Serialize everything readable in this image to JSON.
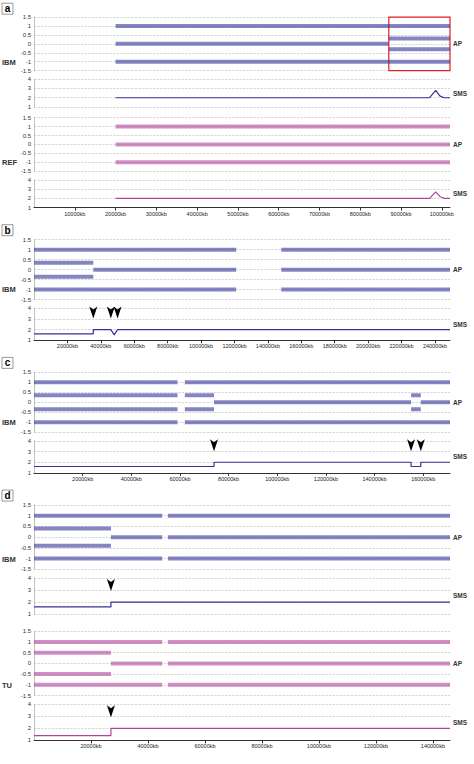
{
  "chart_data": [
    {
      "type": "line",
      "title": "a",
      "grid": true,
      "xlim": [
        0,
        102000
      ],
      "xticks": [
        {
          "value": 10000,
          "label": "10000kb"
        },
        {
          "value": 20000,
          "label": "20000kb"
        },
        {
          "value": 30000,
          "label": "30000kb"
        },
        {
          "value": 40000,
          "label": "40000kb"
        },
        {
          "value": 50000,
          "label": "50000kb"
        },
        {
          "value": 60000,
          "label": "60000kb"
        },
        {
          "value": 70000,
          "label": "70000kb"
        },
        {
          "value": 80000,
          "label": "80000kb"
        },
        {
          "value": 90000,
          "label": "90000kb"
        },
        {
          "value": 100000,
          "label": "100000kb"
        }
      ],
      "tracks": [
        {
          "label": "IBM",
          "color": "#33339a",
          "ap": {
            "name": "AP",
            "ylim": [
              -1.5,
              1.5
            ],
            "yticks": [
              -1.5,
              -1,
              -0.5,
              0,
              0.5,
              1,
              1.5
            ],
            "highlight": [
              87000,
              102000
            ],
            "bands": [
              {
                "x": [
                  20000,
                  102000
                ],
                "values": [
                  1,
                  1
                ]
              },
              {
                "x": [
                  20000,
                  87000
                ],
                "values": [
                  0,
                  0
                ]
              },
              {
                "x": [
                  87000,
                  102000
                ],
                "values": [
                  0.3,
                  0.3
                ]
              },
              {
                "x": [
                  87000,
                  102000
                ],
                "values": [
                  -0.3,
                  -0.3
                ]
              },
              {
                "x": [
                  20000,
                  102000
                ],
                "values": [
                  -1,
                  -1
                ]
              }
            ]
          },
          "sms": {
            "name": "SMS",
            "ylim": [
              1,
              4
            ],
            "yticks": [
              1,
              2,
              3,
              4
            ],
            "x": [
              20000,
              60000,
              97000,
              98500,
              99500,
              100500,
              102000
            ],
            "values": [
              2,
              2,
              2,
              2.8,
              2.2,
              2,
              2
            ],
            "arrows": []
          }
        },
        {
          "label": "REF",
          "color": "#b0449c",
          "ap": {
            "name": "AP",
            "ylim": [
              -1.5,
              1.5
            ],
            "yticks": [
              -1.5,
              -1,
              -0.5,
              0,
              0.5,
              1,
              1.5
            ],
            "bands": [
              {
                "x": [
                  20000,
                  102000
                ],
                "values": [
                  1,
                  1
                ]
              },
              {
                "x": [
                  20000,
                  102000
                ],
                "values": [
                  0,
                  0
                ]
              },
              {
                "x": [
                  20000,
                  102000
                ],
                "values": [
                  -1,
                  -1
                ]
              }
            ]
          },
          "sms": {
            "name": "SMS",
            "ylim": [
              1,
              4
            ],
            "yticks": [
              1,
              2,
              3,
              4
            ],
            "x": [
              20000,
              60000,
              97000,
              98500,
              99500,
              100500,
              102000
            ],
            "values": [
              2,
              2,
              2,
              2.7,
              2.2,
              2,
              2
            ],
            "arrows": []
          }
        }
      ]
    },
    {
      "type": "line",
      "title": "b",
      "grid": true,
      "xlim": [
        0,
        249000
      ],
      "xticks": [
        {
          "value": 20000,
          "label": "20000kb"
        },
        {
          "value": 40000,
          "label": "40000kb"
        },
        {
          "value": 60000,
          "label": "60000kb"
        },
        {
          "value": 80000,
          "label": "80000kb"
        },
        {
          "value": 100000,
          "label": "100000kb"
        },
        {
          "value": 120000,
          "label": "120000kb"
        },
        {
          "value": 140000,
          "label": "140000kb"
        },
        {
          "value": 160000,
          "label": "160000kb"
        },
        {
          "value": 180000,
          "label": "180000kb"
        },
        {
          "value": 200000,
          "label": "200000kb"
        },
        {
          "value": 220000,
          "label": "220000kb"
        },
        {
          "value": 240000,
          "label": "240000kb"
        }
      ],
      "tracks": [
        {
          "label": "IBM",
          "color": "#33339a",
          "ap": {
            "name": "AP",
            "ylim": [
              -1.5,
              1.5
            ],
            "yticks": [
              -1.5,
              -1,
              -0.5,
              0,
              0.5,
              1,
              1.5
            ],
            "bands": [
              {
                "x": [
                  0,
                  121000
                ],
                "values": [
                  1,
                  1
                ]
              },
              {
                "x": [
                  148000,
                  249000
                ],
                "values": [
                  1,
                  1
                ]
              },
              {
                "x": [
                  0,
                  35500
                ],
                "values": [
                  0.35,
                  0.35
                ]
              },
              {
                "x": [
                  0,
                  35500
                ],
                "values": [
                  -0.35,
                  -0.35
                ]
              },
              {
                "x": [
                  35500,
                  121000
                ],
                "values": [
                  0,
                  0
                ]
              },
              {
                "x": [
                  148000,
                  249000
                ],
                "values": [
                  0,
                  0
                ]
              },
              {
                "x": [
                  0,
                  121000
                ],
                "values": [
                  -1,
                  -1
                ]
              },
              {
                "x": [
                  148000,
                  249000
                ],
                "values": [
                  -1,
                  -1
                ]
              }
            ]
          },
          "sms": {
            "name": "SMS",
            "ylim": [
              1,
              4
            ],
            "yticks": [
              1,
              2,
              3,
              4
            ],
            "x": [
              0,
              35500,
              35500,
              46000,
              48000,
              50000,
              249000
            ],
            "values": [
              1.6,
              1.6,
              2,
              2,
              1.5,
              2,
              2
            ],
            "arrows": [
              {
                "x": 35500,
                "y": 2
              },
              {
                "x": 46000,
                "y": 2
              },
              {
                "x": 50000,
                "y": 2
              }
            ]
          }
        }
      ]
    },
    {
      "type": "line",
      "title": "c",
      "grid": true,
      "xlim": [
        0,
        171000
      ],
      "xticks": [
        {
          "value": 20000,
          "label": "20000kb"
        },
        {
          "value": 40000,
          "label": "40000kb"
        },
        {
          "value": 60000,
          "label": "60000kb"
        },
        {
          "value": 80000,
          "label": "80000kb"
        },
        {
          "value": 100000,
          "label": "100000kb"
        },
        {
          "value": 120000,
          "label": "120000kb"
        },
        {
          "value": 140000,
          "label": "140000kb"
        },
        {
          "value": 160000,
          "label": "160000kb"
        }
      ],
      "tracks": [
        {
          "label": "IBM",
          "color": "#33339a",
          "ap": {
            "name": "AP",
            "ylim": [
              -1.5,
              1.5
            ],
            "yticks": [
              -1.5,
              -1,
              -0.5,
              0,
              0.5,
              1,
              1.5
            ],
            "bands": [
              {
                "x": [
                  0,
                  59000
                ],
                "values": [
                  1,
                  1
                ]
              },
              {
                "x": [
                  62000,
                  171000
                ],
                "values": [
                  1,
                  1
                ]
              },
              {
                "x": [
                  0,
                  59000
                ],
                "values": [
                  0.35,
                  0.35
                ]
              },
              {
                "x": [
                  0,
                  59000
                ],
                "values": [
                  -0.35,
                  -0.35
                ]
              },
              {
                "x": [
                  62000,
                  74000
                ],
                "values": [
                  0.35,
                  0.35
                ]
              },
              {
                "x": [
                  62000,
                  74000
                ],
                "values": [
                  -0.35,
                  -0.35
                ]
              },
              {
                "x": [
                  74000,
                  155000
                ],
                "values": [
                  0,
                  0
                ]
              },
              {
                "x": [
                  155000,
                  159000
                ],
                "values": [
                  0.35,
                  0.35
                ]
              },
              {
                "x": [
                  155000,
                  159000
                ],
                "values": [
                  -0.35,
                  -0.35
                ]
              },
              {
                "x": [
                  159000,
                  171000
                ],
                "values": [
                  0,
                  0
                ]
              },
              {
                "x": [
                  0,
                  59000
                ],
                "values": [
                  -1,
                  -1
                ]
              },
              {
                "x": [
                  62000,
                  171000
                ],
                "values": [
                  -1,
                  -1
                ]
              }
            ]
          },
          "sms": {
            "name": "SMS",
            "ylim": [
              1,
              4
            ],
            "yticks": [
              1,
              2,
              3,
              4
            ],
            "x": [
              0,
              74000,
              74000,
              155000,
              155000,
              159000,
              159000,
              171000
            ],
            "values": [
              1.6,
              1.6,
              2,
              2,
              1.6,
              1.6,
              2,
              2
            ],
            "arrows": [
              {
                "x": 74000,
                "y": 2
              },
              {
                "x": 155000,
                "y": 2
              },
              {
                "x": 159000,
                "y": 2
              }
            ]
          }
        }
      ]
    },
    {
      "type": "line",
      "title": "d",
      "grid": true,
      "xlim": [
        0,
        146000
      ],
      "xticks": [
        {
          "value": 20000,
          "label": "20000kb"
        },
        {
          "value": 40000,
          "label": "40000kb"
        },
        {
          "value": 60000,
          "label": "60000kb"
        },
        {
          "value": 80000,
          "label": "80000kb"
        },
        {
          "value": 100000,
          "label": "100000kb"
        },
        {
          "value": 120000,
          "label": "120000kb"
        },
        {
          "value": 140000,
          "label": "140000kb"
        }
      ],
      "tracks": [
        {
          "label": "IBM",
          "color": "#33339a",
          "ap": {
            "name": "AP",
            "ylim": [
              -1.5,
              1.5
            ],
            "yticks": [
              -1.5,
              -1,
              -0.5,
              0,
              0.5,
              1,
              1.5
            ],
            "bands": [
              {
                "x": [
                  0,
                  45000
                ],
                "values": [
                  1,
                  1
                ]
              },
              {
                "x": [
                  47000,
                  146000
                ],
                "values": [
                  1,
                  1
                ]
              },
              {
                "x": [
                  0,
                  27000
                ],
                "values": [
                  0.4,
                  0.4
                ]
              },
              {
                "x": [
                  0,
                  27000
                ],
                "values": [
                  -0.4,
                  -0.4
                ]
              },
              {
                "x": [
                  27000,
                  45000
                ],
                "values": [
                  0,
                  0
                ]
              },
              {
                "x": [
                  47000,
                  146000
                ],
                "values": [
                  0,
                  0
                ]
              },
              {
                "x": [
                  0,
                  45000
                ],
                "values": [
                  -1,
                  -1
                ]
              },
              {
                "x": [
                  47000,
                  146000
                ],
                "values": [
                  -1,
                  -1
                ]
              }
            ]
          },
          "sms": {
            "name": "SMS",
            "ylim": [
              1,
              4
            ],
            "yticks": [
              1,
              2,
              3,
              4
            ],
            "x": [
              0,
              27000,
              27000,
              146000
            ],
            "values": [
              1.6,
              1.6,
              2,
              2
            ],
            "arrows": [
              {
                "x": 27000,
                "y": 2
              }
            ]
          }
        },
        {
          "label": "TU",
          "color": "#b0449c",
          "ap": {
            "name": "AP",
            "ylim": [
              -1.5,
              1.5
            ],
            "yticks": [
              -1.5,
              -1,
              -0.5,
              0,
              0.5,
              1,
              1.5
            ],
            "bands": [
              {
                "x": [
                  0,
                  45000
                ],
                "values": [
                  1,
                  1
                ]
              },
              {
                "x": [
                  47000,
                  146000
                ],
                "values": [
                  1,
                  1
                ]
              },
              {
                "x": [
                  0,
                  27000
                ],
                "values": [
                  0.5,
                  0.5
                ]
              },
              {
                "x": [
                  0,
                  27000
                ],
                "values": [
                  -0.5,
                  -0.5
                ]
              },
              {
                "x": [
                  27000,
                  45000
                ],
                "values": [
                  0,
                  0
                ]
              },
              {
                "x": [
                  47000,
                  146000
                ],
                "values": [
                  0,
                  0
                ]
              },
              {
                "x": [
                  0,
                  45000
                ],
                "values": [
                  -1,
                  -1
                ]
              },
              {
                "x": [
                  47000,
                  146000
                ],
                "values": [
                  -1,
                  -1
                ]
              }
            ]
          },
          "sms": {
            "name": "SMS",
            "ylim": [
              1,
              4
            ],
            "yticks": [
              1,
              2,
              3,
              4
            ],
            "x": [
              0,
              27000,
              27000,
              146000
            ],
            "values": [
              1.4,
              1.4,
              2,
              2
            ],
            "arrows": [
              {
                "x": 27000,
                "y": 2
              }
            ]
          }
        }
      ]
    }
  ]
}
